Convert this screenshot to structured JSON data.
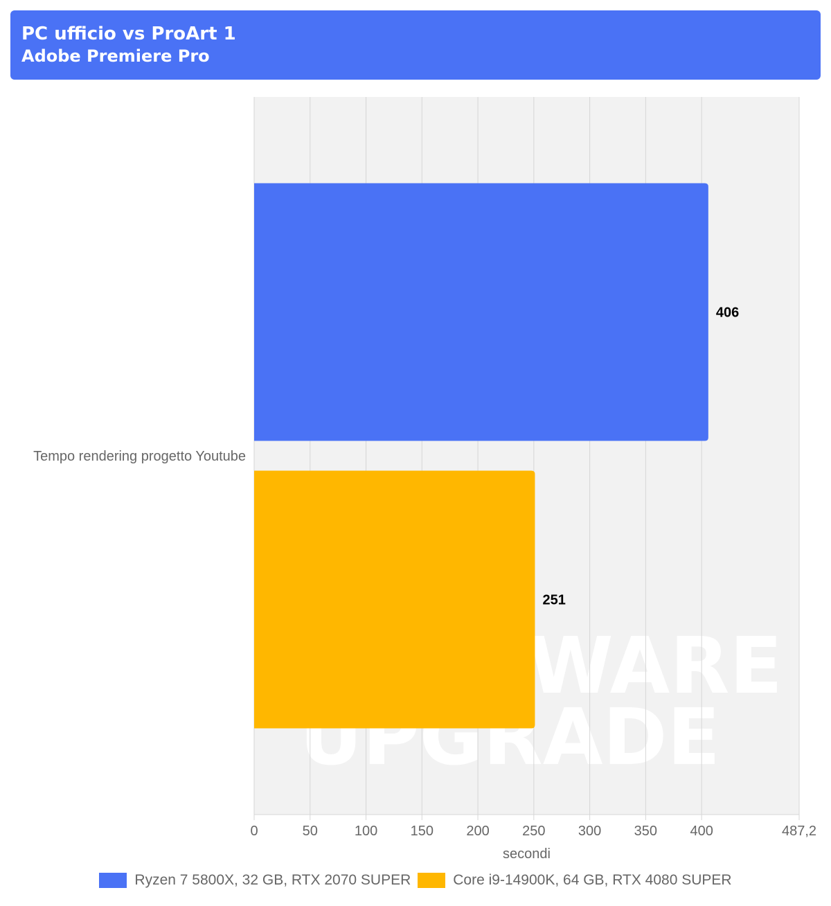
{
  "header": {
    "title": "PC ufficio vs ProArt 1",
    "subtitle": "Adobe Premiere Pro"
  },
  "colors": {
    "header_bg": "#4a72f5",
    "series_1": "#4a72f5",
    "series_2": "#ffb700",
    "plot_bg": "#f2f2f2",
    "grid": "#d6d6d6",
    "axis_text": "#666666"
  },
  "watermark": [
    "HARDWARE",
    "UPGRADE"
  ],
  "chart_data": {
    "type": "bar",
    "orientation": "horizontal",
    "title": "PC ufficio vs ProArt 1",
    "subtitle": "Adobe Premiere Pro",
    "categories": [
      "Tempo rendering progetto Youtube"
    ],
    "series": [
      {
        "name": "Ryzen 7 5800X, 32 GB, RTX 2070 SUPER",
        "values": [
          406
        ],
        "color": "#4a72f5"
      },
      {
        "name": "Core i9-14900K, 64 GB, RTX 4080 SUPER",
        "values": [
          251
        ],
        "color": "#ffb700"
      }
    ],
    "xlabel": "secondi",
    "ylabel": "",
    "xlim": [
      0,
      487.2
    ],
    "ticks": [
      0,
      50,
      100,
      150,
      200,
      250,
      300,
      350,
      400,
      487.2
    ],
    "tick_labels": [
      "0",
      "50",
      "100",
      "150",
      "200",
      "250",
      "300",
      "350",
      "400",
      "487,2"
    ],
    "grid": true,
    "legend_position": "bottom"
  }
}
